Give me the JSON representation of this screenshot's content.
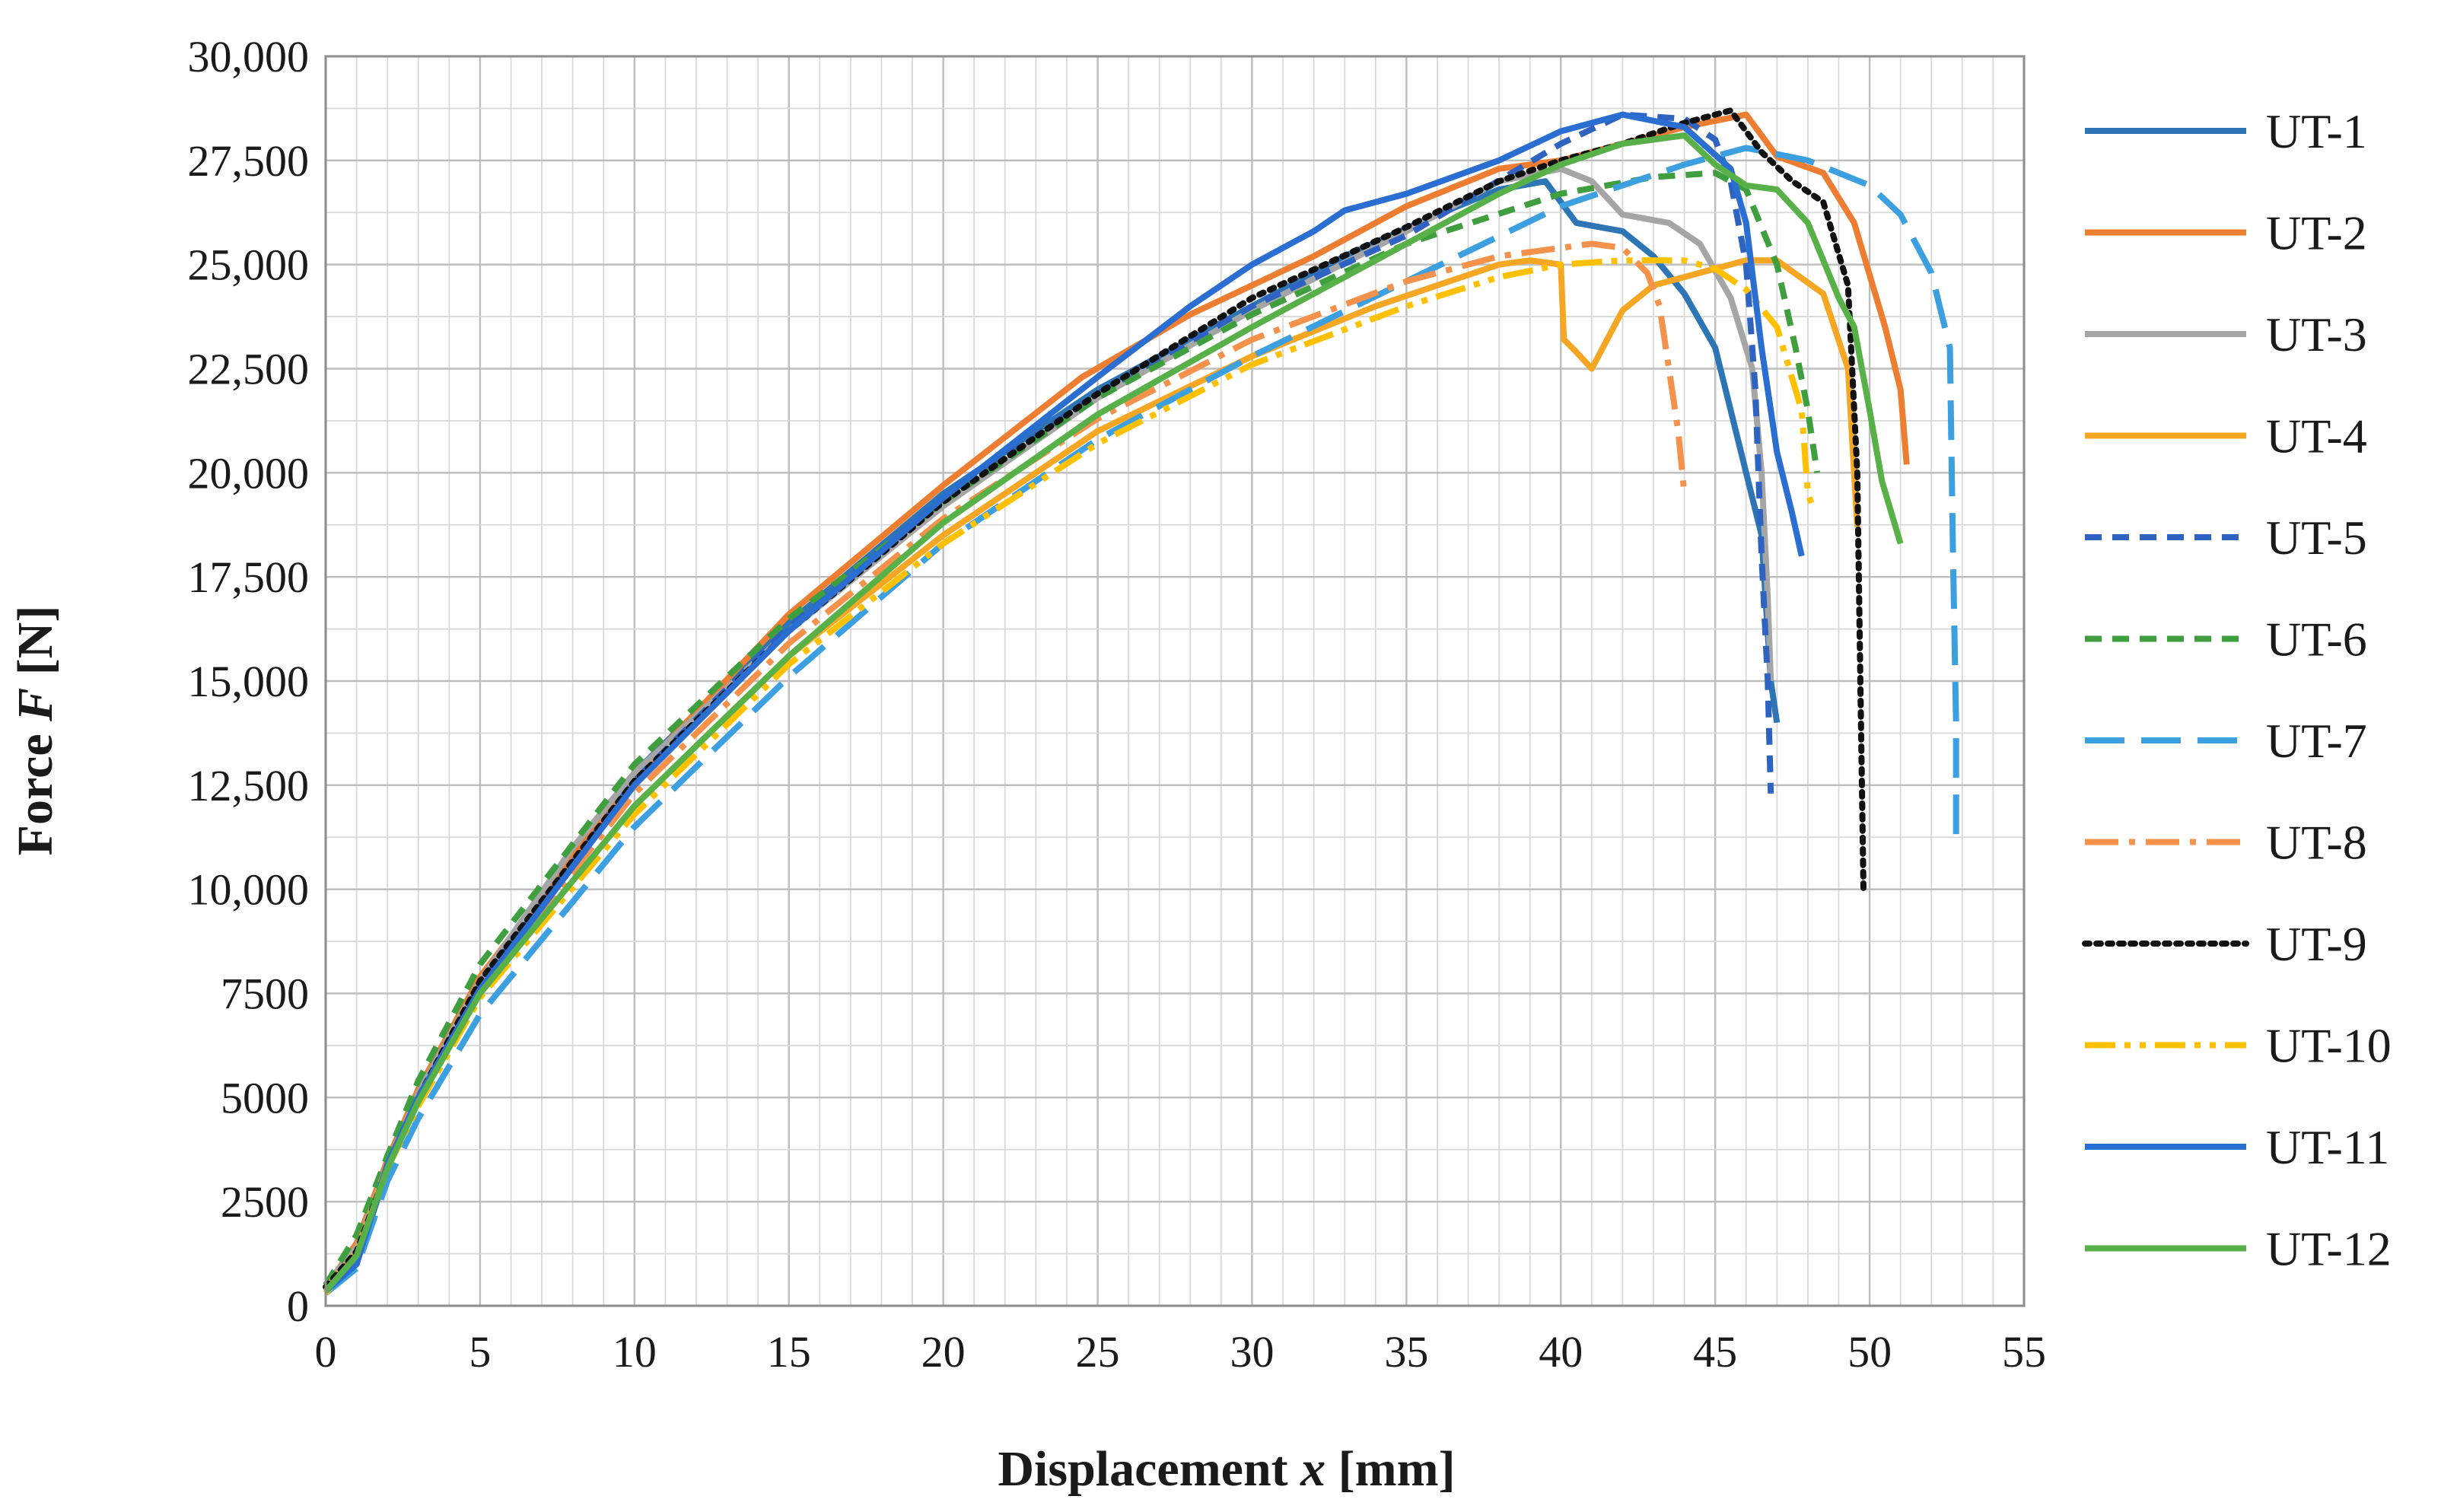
{
  "chart_data": {
    "type": "line",
    "title": "",
    "xlabel": {
      "prefix": "Displacement ",
      "var": "x",
      "suffix": " [mm]"
    },
    "ylabel": {
      "prefix": "Force ",
      "var": "F",
      "suffix": " [N]"
    },
    "xlim": [
      0,
      55
    ],
    "ylim": [
      0,
      30000
    ],
    "x_ticks": [
      0,
      5,
      10,
      15,
      20,
      25,
      30,
      35,
      40,
      45,
      50,
      55
    ],
    "x_tick_labels": [
      "0",
      "5",
      "10",
      "15",
      "20",
      "25",
      "30",
      "35",
      "40",
      "45",
      "50",
      "55"
    ],
    "y_ticks": [
      0,
      2500,
      5000,
      7500,
      10000,
      12500,
      15000,
      17500,
      20000,
      22500,
      25000,
      27500,
      30000
    ],
    "y_tick_labels": [
      "0",
      "2500",
      "5000",
      "7500",
      "10,000",
      "12,500",
      "15,000",
      "17,500",
      "20,000",
      "22,500",
      "25,000",
      "27,500",
      "30,000"
    ],
    "grid": true,
    "minor_grid_x": 1,
    "minor_grid_y": 1250,
    "legend_position": "right",
    "series": [
      {
        "name": "UT-1",
        "color": "#2e75b6",
        "dash": "solid",
        "points": [
          [
            0,
            400
          ],
          [
            1,
            1000
          ],
          [
            2,
            3300
          ],
          [
            3,
            5000
          ],
          [
            5,
            7800
          ],
          [
            10,
            12800
          ],
          [
            15,
            16400
          ],
          [
            20,
            19500
          ],
          [
            25,
            22000
          ],
          [
            30,
            24000
          ],
          [
            33,
            25200
          ],
          [
            36,
            26200
          ],
          [
            38,
            26800
          ],
          [
            39.5,
            27000
          ],
          [
            40.5,
            26000
          ],
          [
            42,
            25800
          ],
          [
            43,
            25200
          ],
          [
            44,
            24300
          ],
          [
            45,
            23000
          ],
          [
            45.5,
            21500
          ],
          [
            46,
            20000
          ],
          [
            46.5,
            18500
          ],
          [
            46.8,
            15000
          ],
          [
            47,
            14000
          ]
        ]
      },
      {
        "name": "UT-2",
        "color": "#ed7d31",
        "dash": "solid",
        "points": [
          [
            0,
            450
          ],
          [
            1,
            1500
          ],
          [
            2,
            3500
          ],
          [
            3,
            5200
          ],
          [
            5,
            7900
          ],
          [
            10,
            12700
          ],
          [
            15,
            16600
          ],
          [
            20,
            19700
          ],
          [
            24.5,
            22300
          ],
          [
            28,
            23800
          ],
          [
            32,
            25200
          ],
          [
            35,
            26400
          ],
          [
            38,
            27300
          ],
          [
            40,
            27500
          ],
          [
            42,
            27900
          ],
          [
            44,
            28300
          ],
          [
            46,
            28600
          ],
          [
            47,
            27600
          ],
          [
            48.5,
            27200
          ],
          [
            49.5,
            26000
          ],
          [
            50.5,
            23500
          ],
          [
            51,
            22000
          ],
          [
            51.2,
            20200
          ]
        ]
      },
      {
        "name": "UT-3",
        "color": "#a5a5a5",
        "dash": "solid",
        "points": [
          [
            0,
            500
          ],
          [
            1,
            1400
          ],
          [
            2,
            3400
          ],
          [
            3,
            5100
          ],
          [
            5,
            7800
          ],
          [
            8,
            11000
          ],
          [
            10,
            12800
          ],
          [
            15,
            16200
          ],
          [
            20,
            19200
          ],
          [
            25,
            21800
          ],
          [
            30,
            23900
          ],
          [
            35,
            25800
          ],
          [
            38,
            27000
          ],
          [
            40,
            27300
          ],
          [
            41,
            27000
          ],
          [
            42,
            26200
          ],
          [
            43.5,
            26000
          ],
          [
            44.5,
            25500
          ],
          [
            45.5,
            24200
          ],
          [
            46.2,
            22500
          ],
          [
            46.5,
            20000
          ],
          [
            46.7,
            17000
          ],
          [
            46.8,
            15000
          ]
        ]
      },
      {
        "name": "UT-4",
        "color": "#f5a623",
        "dash": "solid",
        "points": [
          [
            0,
            350
          ],
          [
            1,
            1300
          ],
          [
            2,
            3400
          ],
          [
            3,
            5000
          ],
          [
            5,
            7500
          ],
          [
            10,
            12000
          ],
          [
            15,
            15600
          ],
          [
            20,
            18500
          ],
          [
            25,
            21000
          ],
          [
            30,
            22800
          ],
          [
            34,
            24000
          ],
          [
            36,
            24500
          ],
          [
            38,
            25000
          ],
          [
            39,
            25100
          ],
          [
            40,
            25000
          ],
          [
            40.1,
            23200
          ],
          [
            40.5,
            22900
          ],
          [
            41,
            22500
          ],
          [
            42,
            23900
          ],
          [
            43,
            24500
          ],
          [
            44,
            24700
          ],
          [
            45,
            24900
          ],
          [
            46,
            25100
          ],
          [
            47,
            25100
          ],
          [
            48.5,
            24300
          ],
          [
            49.3,
            22500
          ],
          [
            49.6,
            18700
          ]
        ]
      },
      {
        "name": "UT-5",
        "color": "#2f63c2",
        "dash": "dash",
        "points": [
          [
            0,
            400
          ],
          [
            1,
            1200
          ],
          [
            2,
            3300
          ],
          [
            3,
            5000
          ],
          [
            5,
            7700
          ],
          [
            10,
            12600
          ],
          [
            15,
            16300
          ],
          [
            20,
            19400
          ],
          [
            25,
            21900
          ],
          [
            30,
            24000
          ],
          [
            35,
            25700
          ],
          [
            40,
            27900
          ],
          [
            42,
            28600
          ],
          [
            44,
            28500
          ],
          [
            45,
            28000
          ],
          [
            45.5,
            27000
          ],
          [
            46,
            25000
          ],
          [
            46.3,
            22000
          ],
          [
            46.5,
            18000
          ],
          [
            46.7,
            15000
          ],
          [
            46.8,
            12300
          ]
        ]
      },
      {
        "name": "UT-6",
        "color": "#3f9f3f",
        "dash": "dash",
        "points": [
          [
            0,
            500
          ],
          [
            1,
            1700
          ],
          [
            2,
            3600
          ],
          [
            3,
            5400
          ],
          [
            5,
            8200
          ],
          [
            10,
            13000
          ],
          [
            15,
            16500
          ],
          [
            20,
            19300
          ],
          [
            25,
            21800
          ],
          [
            30,
            23800
          ],
          [
            35,
            25500
          ],
          [
            40,
            26700
          ],
          [
            43,
            27100
          ],
          [
            45,
            27200
          ],
          [
            46,
            26800
          ],
          [
            47,
            25000
          ],
          [
            47.6,
            23000
          ],
          [
            48,
            21500
          ],
          [
            48.3,
            20000
          ]
        ]
      },
      {
        "name": "UT-7",
        "color": "#3b9fe0",
        "dash": "longdash",
        "points": [
          [
            0,
            300
          ],
          [
            1,
            900
          ],
          [
            2,
            3000
          ],
          [
            3,
            4500
          ],
          [
            5,
            7000
          ],
          [
            10,
            11500
          ],
          [
            15,
            15100
          ],
          [
            20,
            18300
          ],
          [
            25,
            20800
          ],
          [
            30,
            22800
          ],
          [
            35,
            24600
          ],
          [
            40,
            26400
          ],
          [
            44,
            27400
          ],
          [
            46,
            27800
          ],
          [
            48,
            27500
          ],
          [
            50,
            26900
          ],
          [
            51,
            26200
          ],
          [
            52,
            24800
          ],
          [
            52.6,
            23000
          ],
          [
            52.7,
            18000
          ],
          [
            52.8,
            14000
          ],
          [
            52.8,
            11000
          ]
        ]
      },
      {
        "name": "UT-8",
        "color": "#f4914a",
        "dash": "dashdot",
        "points": [
          [
            0,
            400
          ],
          [
            1,
            1300
          ],
          [
            2,
            3400
          ],
          [
            3,
            5000
          ],
          [
            5,
            7600
          ],
          [
            10,
            12300
          ],
          [
            15,
            15900
          ],
          [
            20,
            18900
          ],
          [
            25,
            21300
          ],
          [
            30,
            23200
          ],
          [
            35,
            24600
          ],
          [
            38,
            25200
          ],
          [
            40,
            25400
          ],
          [
            41,
            25500
          ],
          [
            42,
            25400
          ],
          [
            42.8,
            24800
          ],
          [
            43.2,
            24000
          ],
          [
            43.6,
            22000
          ],
          [
            43.8,
            21000
          ],
          [
            44,
            19500
          ]
        ]
      },
      {
        "name": "UT-9",
        "color": "#111111",
        "dash": "dot",
        "points": [
          [
            0,
            450
          ],
          [
            1,
            1300
          ],
          [
            2,
            3300
          ],
          [
            3,
            5000
          ],
          [
            5,
            7800
          ],
          [
            10,
            12600
          ],
          [
            15,
            16200
          ],
          [
            20,
            19300
          ],
          [
            25,
            21900
          ],
          [
            30,
            24200
          ],
          [
            35,
            25900
          ],
          [
            38,
            27000
          ],
          [
            40,
            27500
          ],
          [
            42,
            27900
          ],
          [
            44,
            28400
          ],
          [
            45.5,
            28700
          ],
          [
            46.5,
            27700
          ],
          [
            47.5,
            27000
          ],
          [
            48.5,
            26500
          ],
          [
            49.3,
            24500
          ],
          [
            49.6,
            20000
          ],
          [
            49.7,
            15000
          ],
          [
            49.8,
            10000
          ]
        ]
      },
      {
        "name": "UT-10",
        "color": "#ffc000",
        "dash": "dashdotdot",
        "points": [
          [
            0,
            300
          ],
          [
            1,
            1200
          ],
          [
            2,
            3300
          ],
          [
            3,
            4800
          ],
          [
            5,
            7400
          ],
          [
            10,
            11800
          ],
          [
            15,
            15400
          ],
          [
            20,
            18300
          ],
          [
            25,
            20700
          ],
          [
            30,
            22600
          ],
          [
            35,
            24000
          ],
          [
            38,
            24700
          ],
          [
            40,
            25000
          ],
          [
            42,
            25100
          ],
          [
            44,
            25100
          ],
          [
            45,
            24900
          ],
          [
            46,
            24400
          ],
          [
            47,
            23500
          ],
          [
            47.8,
            21500
          ],
          [
            48,
            19500
          ],
          [
            48.2,
            19100
          ]
        ]
      },
      {
        "name": "UT-11",
        "color": "#2a6ed1",
        "dash": "solid",
        "points": [
          [
            0,
            350
          ],
          [
            1,
            1000
          ],
          [
            2,
            3400
          ],
          [
            3,
            5000
          ],
          [
            5,
            7600
          ],
          [
            10,
            12500
          ],
          [
            15,
            16200
          ],
          [
            20,
            19400
          ],
          [
            25,
            22300
          ],
          [
            28,
            24000
          ],
          [
            30,
            25000
          ],
          [
            32,
            25800
          ],
          [
            33,
            26300
          ],
          [
            35,
            26700
          ],
          [
            38,
            27500
          ],
          [
            40,
            28200
          ],
          [
            42,
            28600
          ],
          [
            44,
            28300
          ],
          [
            45.5,
            27300
          ],
          [
            46,
            26000
          ],
          [
            46.5,
            23000
          ],
          [
            47,
            20500
          ],
          [
            47.5,
            19000
          ],
          [
            47.8,
            18000
          ]
        ]
      },
      {
        "name": "UT-12",
        "color": "#58b048",
        "dash": "solid",
        "points": [
          [
            0,
            350
          ],
          [
            1,
            1200
          ],
          [
            2,
            3300
          ],
          [
            3,
            4900
          ],
          [
            5,
            7500
          ],
          [
            10,
            12000
          ],
          [
            15,
            15600
          ],
          [
            20,
            18800
          ],
          [
            25,
            21400
          ],
          [
            30,
            23500
          ],
          [
            35,
            25500
          ],
          [
            38,
            26700
          ],
          [
            40,
            27400
          ],
          [
            42,
            27900
          ],
          [
            44,
            28100
          ],
          [
            45,
            27400
          ],
          [
            46,
            26900
          ],
          [
            47,
            26800
          ],
          [
            48,
            26000
          ],
          [
            49,
            24200
          ],
          [
            49.5,
            23500
          ],
          [
            50,
            21500
          ],
          [
            50.4,
            19800
          ],
          [
            51,
            18300
          ]
        ]
      }
    ]
  }
}
